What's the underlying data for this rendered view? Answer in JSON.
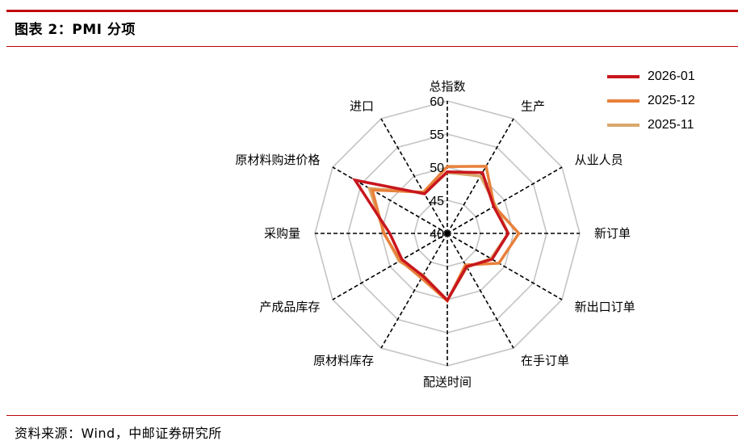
{
  "figure": {
    "title": "图表 2：PMI 分项",
    "source": "资料来源：Wind，中邮证券研究所"
  },
  "chart_data": {
    "type": "radar",
    "axes": [
      "总指数",
      "生产",
      "从业人员",
      "新订单",
      "新出口订单",
      "在手订单",
      "配送时间",
      "原材料库存",
      "产成品库存",
      "采购量",
      "原材料购进价格",
      "进口"
    ],
    "range": [
      40,
      60
    ],
    "ticks": [
      "40",
      "45",
      "50",
      "55",
      "60"
    ],
    "series": [
      {
        "name": "2026-01",
        "color": "#c8161d",
        "values": [
          49.3,
          50.6,
          48.1,
          49.2,
          47.8,
          45.8,
          50.1,
          47.4,
          47.9,
          48.7,
          56.1,
          46.9
        ]
      },
      {
        "name": "2025-12",
        "color": "#e9803a",
        "values": [
          50.1,
          51.7,
          48.2,
          50.8,
          49.0,
          45.5,
          50.2,
          47.8,
          48.2,
          49.6,
          53.1,
          47.2
        ]
      },
      {
        "name": "2025-11",
        "color": "#d9a86c",
        "values": [
          49.2,
          50.0,
          48.4,
          49.2,
          47.6,
          45.9,
          50.1,
          47.3,
          48.4,
          49.5,
          53.6,
          47.1
        ]
      }
    ],
    "legend_position": "top-right"
  }
}
